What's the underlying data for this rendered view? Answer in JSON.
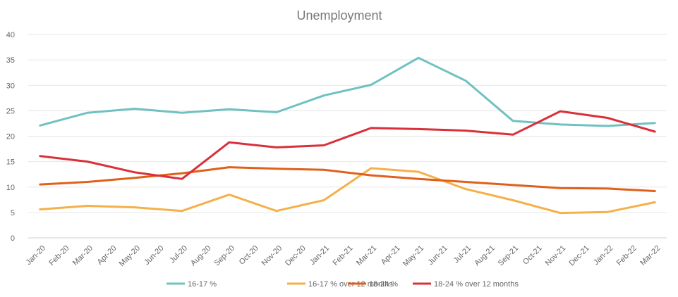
{
  "chart_data": {
    "type": "line",
    "title": "Unemployment",
    "xlabel": "",
    "ylabel": "",
    "ylim": [
      0,
      40
    ],
    "y_ticks": [
      0,
      5,
      10,
      15,
      20,
      25,
      30,
      35,
      40
    ],
    "grid": true,
    "legend_position": "bottom",
    "categories": [
      "Jan-20",
      "Feb-20",
      "Mar-20",
      "Apr-20",
      "May-20",
      "Jun-20",
      "Jul-20",
      "Aug-20",
      "Sep-20",
      "Oct-20",
      "Nov-20",
      "Dec-20",
      "Jan-21",
      "Feb-21",
      "Mar-21",
      "Apr-21",
      "May-21",
      "Jun-21",
      "Jul-21",
      "Aug-21",
      "Sep-21",
      "Oct-21",
      "Nov-21",
      "Dec-21",
      "Jan-22",
      "Feb-22",
      "Mar-22"
    ],
    "series": [
      {
        "name": "16-17 %",
        "color": "#70c1c1",
        "points": [
          {
            "x": "Jan-20",
            "y": 22.1
          },
          {
            "x": "Mar-20",
            "y": 24.6
          },
          {
            "x": "May-20",
            "y": 25.4
          },
          {
            "x": "Jul-20",
            "y": 24.6
          },
          {
            "x": "Sep-20",
            "y": 25.3
          },
          {
            "x": "Nov-20",
            "y": 24.7
          },
          {
            "x": "Jan-21",
            "y": 28.0
          },
          {
            "x": "Mar-21",
            "y": 30.1
          },
          {
            "x": "May-21",
            "y": 35.4
          },
          {
            "x": "Jul-21",
            "y": 30.9
          },
          {
            "x": "Sep-21",
            "y": 23.0
          },
          {
            "x": "Nov-21",
            "y": 22.3
          },
          {
            "x": "Jan-22",
            "y": 22.0
          },
          {
            "x": "Mar-22",
            "y": 22.6
          }
        ]
      },
      {
        "name": "16-17 % over 12 months",
        "color": "#f4b04a",
        "points": [
          {
            "x": "Jan-20",
            "y": 5.6
          },
          {
            "x": "Mar-20",
            "y": 6.3
          },
          {
            "x": "May-20",
            "y": 6.0
          },
          {
            "x": "Jul-20",
            "y": 5.3
          },
          {
            "x": "Sep-20",
            "y": 8.5
          },
          {
            "x": "Nov-20",
            "y": 5.3
          },
          {
            "x": "Jan-21",
            "y": 7.4
          },
          {
            "x": "Mar-21",
            "y": 13.7
          },
          {
            "x": "May-21",
            "y": 13.0
          },
          {
            "x": "Jul-21",
            "y": 9.6
          },
          {
            "x": "Sep-21",
            "y": 7.4
          },
          {
            "x": "Nov-21",
            "y": 4.9
          },
          {
            "x": "Jan-22",
            "y": 5.1
          },
          {
            "x": "Mar-22",
            "y": 7.0
          }
        ]
      },
      {
        "name": "18-24 %",
        "color": "#e0601a",
        "points": [
          {
            "x": "Jan-20",
            "y": 10.5
          },
          {
            "x": "Mar-20",
            "y": 11.0
          },
          {
            "x": "May-20",
            "y": 11.8
          },
          {
            "x": "Jul-20",
            "y": 12.7
          },
          {
            "x": "Sep-20",
            "y": 13.9
          },
          {
            "x": "Nov-20",
            "y": 13.6
          },
          {
            "x": "Jan-21",
            "y": 13.4
          },
          {
            "x": "Mar-21",
            "y": 12.3
          },
          {
            "x": "May-21",
            "y": 11.6
          },
          {
            "x": "Jul-21",
            "y": 11.0
          },
          {
            "x": "Sep-21",
            "y": 10.4
          },
          {
            "x": "Nov-21",
            "y": 9.8
          },
          {
            "x": "Jan-22",
            "y": 9.7
          },
          {
            "x": "Mar-22",
            "y": 9.2
          }
        ]
      },
      {
        "name": "18-24 % over 12 months",
        "color": "#d9303a",
        "points": [
          {
            "x": "Jan-20",
            "y": 16.1
          },
          {
            "x": "Mar-20",
            "y": 15.0
          },
          {
            "x": "May-20",
            "y": 12.9
          },
          {
            "x": "Jul-20",
            "y": 11.6
          },
          {
            "x": "Sep-20",
            "y": 18.8
          },
          {
            "x": "Nov-20",
            "y": 17.8
          },
          {
            "x": "Jan-21",
            "y": 18.2
          },
          {
            "x": "Mar-21",
            "y": 21.6
          },
          {
            "x": "May-21",
            "y": 21.4
          },
          {
            "x": "Jul-21",
            "y": 21.1
          },
          {
            "x": "Sep-21",
            "y": 20.3
          },
          {
            "x": "Nov-21",
            "y": 24.9
          },
          {
            "x": "Jan-22",
            "y": 23.6
          },
          {
            "x": "Mar-22",
            "y": 20.9
          }
        ]
      }
    ]
  }
}
